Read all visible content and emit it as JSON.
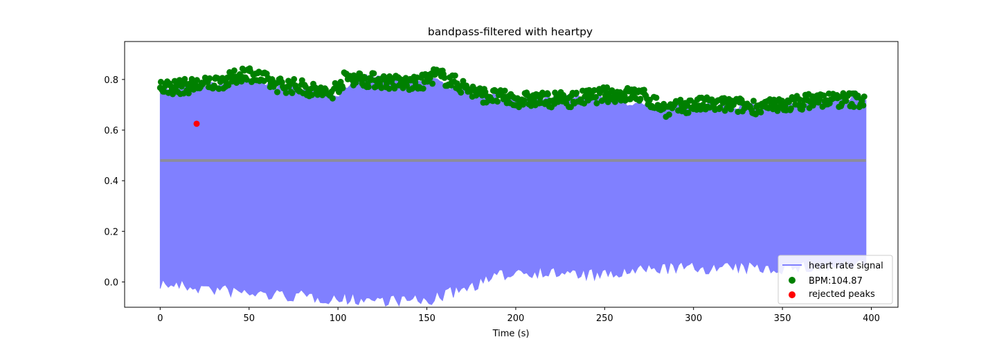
{
  "chart_data": {
    "type": "line",
    "title": "bandpass-filtered with heartpy",
    "xlabel": "Time (s)",
    "ylabel": "",
    "xlim": [
      -20,
      415
    ],
    "ylim": [
      -0.1,
      0.95
    ],
    "xticks": [
      0,
      50,
      100,
      150,
      200,
      250,
      300,
      350,
      400
    ],
    "yticks": [
      0.0,
      0.2,
      0.4,
      0.6,
      0.8
    ],
    "xtick_labels": [
      "0",
      "50",
      "100",
      "150",
      "200",
      "250",
      "300",
      "350",
      "400"
    ],
    "ytick_labels": [
      "0.0",
      "0.2",
      "0.4",
      "0.6",
      "0.8"
    ],
    "grid": false,
    "legend_position": "lower-right",
    "series": [
      {
        "name": "heart rate signal",
        "kind": "filled-oscillation",
        "color": "#8080ff",
        "x_range": [
          0,
          397
        ],
        "upper_envelope": [
          [
            0,
            0.76
          ],
          [
            20,
            0.77
          ],
          [
            50,
            0.79
          ],
          [
            80,
            0.76
          ],
          [
            100,
            0.74
          ],
          [
            110,
            0.81
          ],
          [
            150,
            0.8
          ],
          [
            180,
            0.74
          ],
          [
            200,
            0.72
          ],
          [
            250,
            0.73
          ],
          [
            280,
            0.68
          ],
          [
            300,
            0.7
          ],
          [
            350,
            0.69
          ],
          [
            397,
            0.73
          ]
        ],
        "lower_envelope": [
          [
            0,
            0.02
          ],
          [
            50,
            -0.02
          ],
          [
            100,
            -0.04
          ],
          [
            150,
            -0.05
          ],
          [
            200,
            0.07
          ],
          [
            250,
            0.05
          ],
          [
            280,
            0.08
          ],
          [
            300,
            0.08
          ],
          [
            350,
            0.08
          ],
          [
            397,
            0.09
          ]
        ],
        "midline": 0.48
      },
      {
        "name": "BPM:104.87",
        "kind": "scatter",
        "color": "#008000",
        "peak_trend": [
          [
            0,
            0.77
          ],
          [
            10,
            0.77
          ],
          [
            25,
            0.78
          ],
          [
            40,
            0.8
          ],
          [
            48,
            0.83
          ],
          [
            55,
            0.81
          ],
          [
            65,
            0.78
          ],
          [
            80,
            0.77
          ],
          [
            95,
            0.74
          ],
          [
            105,
            0.81
          ],
          [
            115,
            0.8
          ],
          [
            130,
            0.79
          ],
          [
            145,
            0.78
          ],
          [
            155,
            0.82
          ],
          [
            165,
            0.79
          ],
          [
            180,
            0.74
          ],
          [
            200,
            0.72
          ],
          [
            215,
            0.72
          ],
          [
            230,
            0.72
          ],
          [
            250,
            0.74
          ],
          [
            270,
            0.74
          ],
          [
            280,
            0.7
          ],
          [
            285,
            0.68
          ],
          [
            300,
            0.7
          ],
          [
            320,
            0.7
          ],
          [
            340,
            0.69
          ],
          [
            350,
            0.7
          ],
          [
            370,
            0.72
          ],
          [
            395,
            0.72
          ]
        ],
        "peak_count": 694
      },
      {
        "name": "rejected peaks",
        "kind": "scatter",
        "color": "#ff0000",
        "points": [
          [
            20.5,
            0.625
          ]
        ]
      }
    ]
  }
}
